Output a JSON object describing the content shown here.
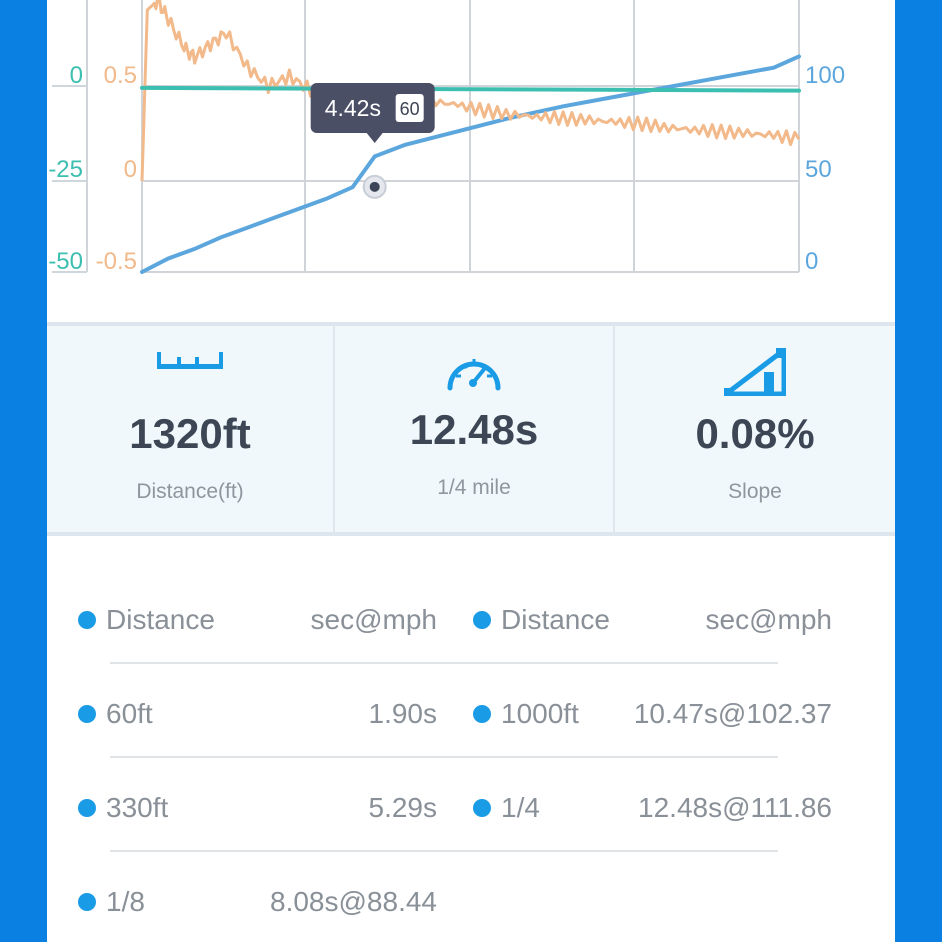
{
  "colors": {
    "background": "#0a80e2",
    "speed_series": "#5ca6de",
    "accel_series": "#f2b98a",
    "slope_series": "#3cbfb0",
    "accent": "#1a9be6",
    "text_dark": "#3c4654"
  },
  "chart_data": {
    "type": "line",
    "left_axis_1": {
      "color": "#3cbfb0",
      "ticks": [
        "0",
        "-25",
        "-50"
      ]
    },
    "left_axis_2": {
      "color": "#f2b98a",
      "ticks": [
        "0.5",
        "0",
        "-0.5"
      ]
    },
    "right_axis": {
      "color": "#5ca6de",
      "ticks": [
        "100",
        "50",
        "0"
      ]
    },
    "series": [
      {
        "axis": "right",
        "color": "#5ca6de",
        "x": [
          0,
          0.5,
          1,
          1.5,
          2,
          2.5,
          3,
          3.5,
          4,
          4.42,
          5,
          6,
          7,
          8,
          9,
          10,
          11,
          12,
          12.48
        ],
        "values": [
          0,
          7,
          12,
          18,
          23,
          28,
          33,
          38,
          44,
          60,
          66,
          73,
          80,
          86,
          91,
          96,
          101,
          106,
          111.86
        ]
      },
      {
        "axis": "left_2",
        "color": "#f2b98a",
        "x": [
          0,
          0.1,
          0.3,
          0.5,
          0.8,
          1.0,
          1.3,
          1.6,
          2.0,
          2.4,
          2.8,
          3.2,
          3.6,
          4.0,
          4.5,
          5.0,
          5.5,
          6.0,
          6.5,
          7.0,
          7.5,
          8.0,
          8.5,
          9.0,
          9.5,
          10.0,
          10.5,
          11.0,
          11.5,
          12.0,
          12.48
        ],
        "values": [
          0,
          0.9,
          0.95,
          0.85,
          0.7,
          0.65,
          0.72,
          0.78,
          0.6,
          0.5,
          0.55,
          0.48,
          0.47,
          0.46,
          0.45,
          0.44,
          0.42,
          0.4,
          0.37,
          0.35,
          0.34,
          0.33,
          0.32,
          0.31,
          0.3,
          0.28,
          0.27,
          0.26,
          0.25,
          0.24,
          0.22
        ]
      },
      {
        "axis": "left_1",
        "color": "#3cbfb0",
        "x": [
          0,
          12.48
        ],
        "values": [
          -0.5,
          -1.2
        ]
      }
    ],
    "x_range": [
      0,
      12.48
    ],
    "grid": true,
    "tooltip": {
      "time": "4.42s",
      "value": "60"
    }
  },
  "stats": [
    {
      "icon": "ruler-icon",
      "value": "1320ft",
      "label": "Distance(ft)"
    },
    {
      "icon": "speedometer-icon",
      "value": "12.48s",
      "label": "1/4 mile"
    },
    {
      "icon": "slope-icon",
      "value": "0.08%",
      "label": "Slope"
    }
  ],
  "table": {
    "header": {
      "col1": "Distance",
      "col2": "sec@mph",
      "col3": "Distance",
      "col4": "sec@mph"
    },
    "rows": [
      {
        "c1": "60ft",
        "c2": "1.90s",
        "c3": "1000ft",
        "c4": "10.47s@102.37"
      },
      {
        "c1": "330ft",
        "c2": "5.29s",
        "c3": "1/4",
        "c4": "12.48s@111.86"
      },
      {
        "c1": "1/8",
        "c2": "8.08s@88.44",
        "c3": "",
        "c4": ""
      }
    ]
  }
}
